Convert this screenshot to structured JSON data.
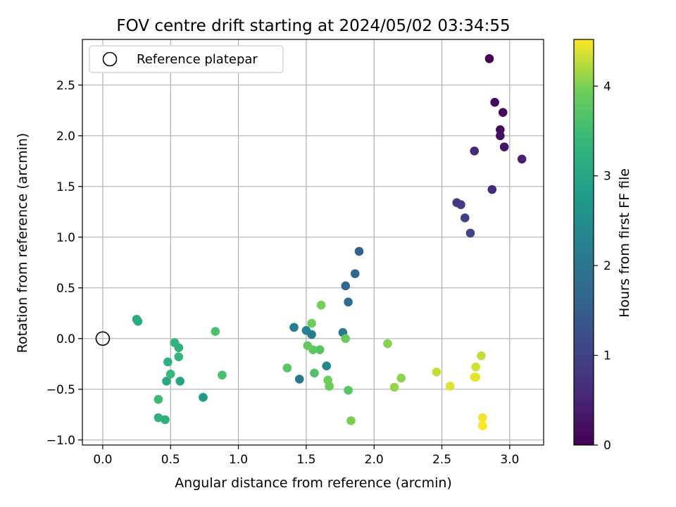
{
  "chart_data": {
    "type": "scatter",
    "title": "FOV centre drift starting at 2024/05/02 03:34:55",
    "xlabel": "Angular distance from reference (arcmin)",
    "ylabel": "Rotation from reference (arcmin)",
    "xlim": [
      -0.15,
      3.25
    ],
    "ylim": [
      -1.05,
      2.95
    ],
    "xticks": [
      0.0,
      0.5,
      1.0,
      1.5,
      2.0,
      2.5,
      3.0
    ],
    "xtick_labels": [
      "0.0",
      "0.5",
      "1.0",
      "1.5",
      "2.0",
      "2.5",
      "3.0"
    ],
    "yticks": [
      -1.0,
      -0.5,
      0.0,
      0.5,
      1.0,
      1.5,
      2.0,
      2.5
    ],
    "ytick_labels": [
      "−1.0",
      "−0.5",
      "0.0",
      "0.5",
      "1.0",
      "1.5",
      "2.0",
      "2.5"
    ],
    "grid": true,
    "legend": {
      "placement": "top-left",
      "entries": [
        "Reference platepar"
      ]
    },
    "reference_point": {
      "x": 0.0,
      "y": 0.0
    },
    "colorbar": {
      "label": "Hours from first FF file",
      "cmap": "viridis",
      "range": [
        0,
        4.52
      ],
      "ticks": [
        0,
        1,
        2,
        3,
        4
      ],
      "tick_labels": [
        "0",
        "1",
        "2",
        "3",
        "4"
      ]
    },
    "points": [
      {
        "x": 2.85,
        "y": 2.76,
        "c": 0.0
      },
      {
        "x": 2.89,
        "y": 2.33,
        "c": 0.08
      },
      {
        "x": 2.95,
        "y": 2.23,
        "c": 0.13
      },
      {
        "x": 2.93,
        "y": 2.06,
        "c": 0.18
      },
      {
        "x": 2.93,
        "y": 2.0,
        "c": 0.22
      },
      {
        "x": 2.96,
        "y": 1.89,
        "c": 0.28
      },
      {
        "x": 3.09,
        "y": 1.77,
        "c": 0.45
      },
      {
        "x": 2.74,
        "y": 1.85,
        "c": 0.55
      },
      {
        "x": 2.87,
        "y": 1.47,
        "c": 0.62
      },
      {
        "x": 2.61,
        "y": 1.34,
        "c": 0.88
      },
      {
        "x": 2.64,
        "y": 1.32,
        "c": 0.93
      },
      {
        "x": 2.67,
        "y": 1.19,
        "c": 1.0
      },
      {
        "x": 2.71,
        "y": 1.04,
        "c": 1.05
      },
      {
        "x": 1.89,
        "y": 0.86,
        "c": 1.55
      },
      {
        "x": 1.86,
        "y": 0.64,
        "c": 1.65
      },
      {
        "x": 1.79,
        "y": 0.52,
        "c": 1.72
      },
      {
        "x": 1.81,
        "y": 0.36,
        "c": 1.8
      },
      {
        "x": 1.41,
        "y": 0.11,
        "c": 2.15
      },
      {
        "x": 1.5,
        "y": 0.08,
        "c": 2.25
      },
      {
        "x": 1.54,
        "y": 0.04,
        "c": 2.2
      },
      {
        "x": 1.45,
        "y": -0.4,
        "c": 2.05
      },
      {
        "x": 1.65,
        "y": -0.27,
        "c": 2.35
      },
      {
        "x": 1.77,
        "y": 0.06,
        "c": 2.08
      },
      {
        "x": 0.74,
        "y": -0.58,
        "c": 2.75
      },
      {
        "x": 0.25,
        "y": 0.19,
        "c": 3.1
      },
      {
        "x": 0.26,
        "y": 0.17,
        "c": 3.15
      },
      {
        "x": 0.47,
        "y": -0.42,
        "c": 3.05
      },
      {
        "x": 0.57,
        "y": -0.42,
        "c": 2.98
      },
      {
        "x": 0.48,
        "y": -0.23,
        "c": 3.2
      },
      {
        "x": 0.53,
        "y": -0.04,
        "c": 3.3
      },
      {
        "x": 0.56,
        "y": -0.09,
        "c": 3.25
      },
      {
        "x": 0.56,
        "y": -0.18,
        "c": 3.35
      },
      {
        "x": 0.5,
        "y": -0.35,
        "c": 3.4
      },
      {
        "x": 0.41,
        "y": -0.6,
        "c": 3.45
      },
      {
        "x": 0.41,
        "y": -0.78,
        "c": 3.28
      },
      {
        "x": 0.46,
        "y": -0.8,
        "c": 3.22
      },
      {
        "x": 0.83,
        "y": 0.07,
        "c": 3.6
      },
      {
        "x": 0.88,
        "y": -0.36,
        "c": 3.62
      },
      {
        "x": 1.36,
        "y": -0.29,
        "c": 3.75
      },
      {
        "x": 1.51,
        "y": -0.07,
        "c": 3.85
      },
      {
        "x": 1.55,
        "y": -0.11,
        "c": 3.8
      },
      {
        "x": 1.56,
        "y": -0.34,
        "c": 3.65
      },
      {
        "x": 1.6,
        "y": -0.11,
        "c": 3.72
      },
      {
        "x": 1.54,
        "y": 0.15,
        "c": 3.92
      },
      {
        "x": 1.61,
        "y": 0.33,
        "c": 3.98
      },
      {
        "x": 1.66,
        "y": -0.41,
        "c": 3.95
      },
      {
        "x": 1.67,
        "y": -0.47,
        "c": 3.9
      },
      {
        "x": 1.79,
        "y": 0.0,
        "c": 3.88
      },
      {
        "x": 1.81,
        "y": -0.51,
        "c": 3.7
      },
      {
        "x": 1.83,
        "y": -0.81,
        "c": 4.0
      },
      {
        "x": 2.1,
        "y": -0.05,
        "c": 4.05
      },
      {
        "x": 2.15,
        "y": -0.48,
        "c": 4.1
      },
      {
        "x": 2.2,
        "y": -0.39,
        "c": 4.08
      },
      {
        "x": 2.46,
        "y": -0.33,
        "c": 4.3
      },
      {
        "x": 2.56,
        "y": -0.47,
        "c": 4.4
      },
      {
        "x": 2.74,
        "y": -0.38,
        "c": 4.45
      },
      {
        "x": 2.75,
        "y": -0.38,
        "c": 4.42
      },
      {
        "x": 2.75,
        "y": -0.28,
        "c": 4.35
      },
      {
        "x": 2.79,
        "y": -0.17,
        "c": 4.3
      },
      {
        "x": 2.8,
        "y": -0.78,
        "c": 4.48
      },
      {
        "x": 2.8,
        "y": -0.86,
        "c": 4.52
      }
    ]
  }
}
